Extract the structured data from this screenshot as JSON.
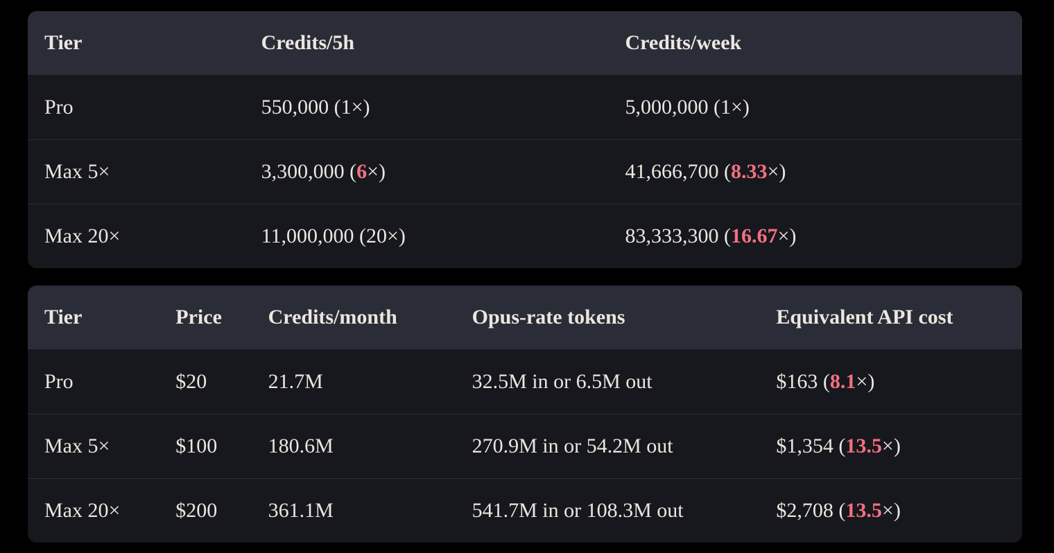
{
  "colors": {
    "page_bg": "#000000",
    "row_bg": "#17171e",
    "header_bg": "#2a2c37",
    "text": "#ebe7df",
    "accent_red": "#f1717f",
    "divider": "#2b2c36"
  },
  "tables": [
    {
      "name": "credit-limits",
      "columns": [
        "Tier",
        "Credits/5h",
        "Credits/week"
      ],
      "rows": [
        {
          "cells": [
            {
              "pre": "Pro"
            },
            {
              "pre": "550,000 (1×)"
            },
            {
              "pre": "5,000,000 (1×)"
            }
          ]
        },
        {
          "cells": [
            {
              "pre": "Max 5×"
            },
            {
              "pre": "3,300,000 (",
              "highlight": "6",
              "post": "×)"
            },
            {
              "pre": "41,666,700 (",
              "highlight": "8.33",
              "post": "×)"
            }
          ]
        },
        {
          "cells": [
            {
              "pre": "Max 20×"
            },
            {
              "pre": "11,000,000 (20×)"
            },
            {
              "pre": "83,333,300 (",
              "highlight": "16.67",
              "post": "×)"
            }
          ]
        }
      ]
    },
    {
      "name": "pricing-value",
      "columns": [
        "Tier",
        "Price",
        "Credits/month",
        "Opus-rate tokens",
        "Equivalent API cost"
      ],
      "rows": [
        {
          "cells": [
            {
              "pre": "Pro"
            },
            {
              "pre": "$20"
            },
            {
              "pre": "21.7M"
            },
            {
              "pre": "32.5M in or 6.5M out"
            },
            {
              "pre": "$163 (",
              "highlight": "8.1",
              "post": "×)"
            }
          ]
        },
        {
          "cells": [
            {
              "pre": "Max 5×"
            },
            {
              "pre": "$100"
            },
            {
              "pre": "180.6M"
            },
            {
              "pre": "270.9M in or 54.2M out"
            },
            {
              "pre": "$1,354 (",
              "highlight": "13.5",
              "post": "×)"
            }
          ]
        },
        {
          "cells": [
            {
              "pre": "Max 20×"
            },
            {
              "pre": "$200"
            },
            {
              "pre": "361.1M"
            },
            {
              "pre": "541.7M in or 108.3M out"
            },
            {
              "pre": "$2,708 (",
              "highlight": "13.5",
              "post": "×)"
            }
          ]
        }
      ]
    }
  ]
}
